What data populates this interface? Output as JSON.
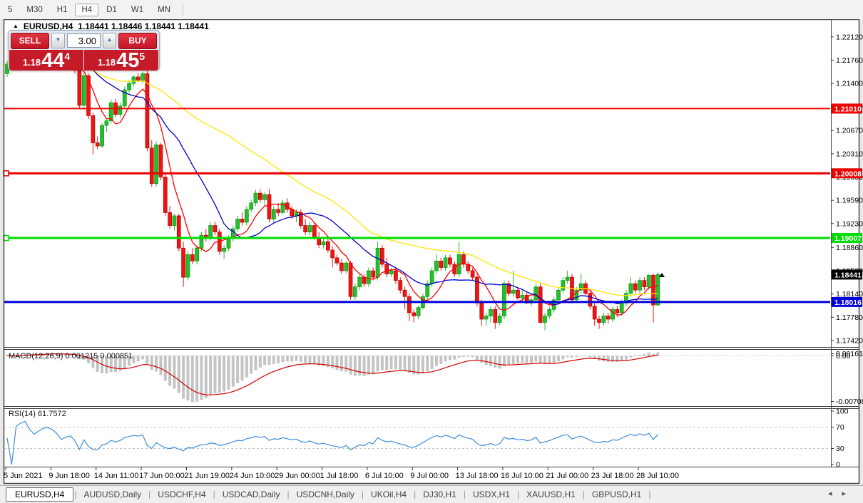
{
  "toolbar": {
    "timeframes": [
      "5",
      "M30",
      "H1",
      "H4",
      "D1",
      "W1",
      "MN"
    ],
    "active": "H4"
  },
  "header": {
    "collapse_icon": "▲",
    "symbol": "EURUSD,H4",
    "quotes": "1.18441 1.18446 1.18441 1.18441"
  },
  "trade_panel": {
    "sell_label": "SELL",
    "buy_label": "BUY",
    "volume": "3.00",
    "sell_price": {
      "prefix": "1.18",
      "big": "44",
      "sup": "4"
    },
    "buy_price": {
      "prefix": "1.18",
      "big": "45",
      "sup": "5"
    }
  },
  "chart_data": {
    "type": "candlestick",
    "symbol": "EURUSD",
    "timeframe": "H4",
    "ylim": [
      1.1732,
      1.2236
    ],
    "price_ticks": [
      "1.22120",
      "1.21760",
      "1.21400",
      "1.21040",
      "1.20670",
      "1.20310",
      "1.19950",
      "1.19590",
      "1.19230",
      "1.18860",
      "1.18500",
      "1.18140",
      "1.17780",
      "1.17420"
    ],
    "x_ticks": {
      "every": 10,
      "labels": [
        "5 Jun 2021",
        "9 Jun 18:00",
        "14 Jun 11:00",
        "17 Jun 00:00",
        "21 Jun 19:00",
        "24 Jun 10:00",
        "29 Jun 00:00",
        "1 Jul 18:00",
        "6 Jul 10:00",
        "9 Jul 00:00",
        "13 Jul 18:00",
        "16 Jul 10:00",
        "21 Jul 00:00",
        "23 Jul 18:00",
        "28 Jul 10:00"
      ]
    },
    "candles": [
      [
        1.2155,
        1.2175,
        1.215,
        1.217
      ],
      [
        1.217,
        1.2178,
        1.2162,
        1.2165
      ],
      [
        1.2165,
        1.218,
        1.216,
        1.2178
      ],
      [
        1.2178,
        1.2185,
        1.217,
        1.2182
      ],
      [
        1.2182,
        1.219,
        1.2176,
        1.2186
      ],
      [
        1.2186,
        1.2192,
        1.2178,
        1.218
      ],
      [
        1.218,
        1.2187,
        1.2172,
        1.2175
      ],
      [
        1.2175,
        1.2183,
        1.2169,
        1.2181
      ],
      [
        1.2181,
        1.219,
        1.2175,
        1.2188
      ],
      [
        1.2188,
        1.2195,
        1.2182,
        1.219
      ],
      [
        1.219,
        1.2196,
        1.2183,
        1.2187
      ],
      [
        1.2187,
        1.2192,
        1.2178,
        1.218
      ],
      [
        1.218,
        1.2185,
        1.216,
        1.2165
      ],
      [
        1.2165,
        1.2175,
        1.216,
        1.2172
      ],
      [
        1.2172,
        1.218,
        1.2165,
        1.2176
      ],
      [
        1.2176,
        1.2182,
        1.2155,
        1.216
      ],
      [
        1.216,
        1.2165,
        1.2102,
        1.2106
      ],
      [
        1.2106,
        1.2156,
        1.2103,
        1.2152
      ],
      [
        1.2152,
        1.2156,
        1.2085,
        1.209
      ],
      [
        1.209,
        1.2095,
        1.203,
        1.2048
      ],
      [
        1.2048,
        1.2058,
        1.2038,
        1.2043
      ],
      [
        1.2043,
        1.2078,
        1.204,
        1.2075
      ],
      [
        1.2075,
        1.2085,
        1.2065,
        1.2082
      ],
      [
        1.2082,
        1.2115,
        1.2078,
        1.211
      ],
      [
        1.211,
        1.2116,
        1.2088,
        1.2092
      ],
      [
        1.2092,
        1.211,
        1.2087,
        1.2105
      ],
      [
        1.2105,
        1.2135,
        1.21,
        1.213
      ],
      [
        1.213,
        1.2145,
        1.2125,
        1.214
      ],
      [
        1.214,
        1.2153,
        1.2135,
        1.215
      ],
      [
        1.215,
        1.2156,
        1.2142,
        1.2145
      ],
      [
        1.2145,
        1.2158,
        1.214,
        1.2155
      ],
      [
        1.2155,
        1.216,
        1.2035,
        1.204
      ],
      [
        1.204,
        1.2052,
        1.198,
        1.1985
      ],
      [
        1.1985,
        1.205,
        1.198,
        1.2045
      ],
      [
        1.2045,
        1.2048,
        1.199,
        1.1995
      ],
      [
        1.1995,
        1.2,
        1.1935,
        1.194
      ],
      [
        1.194,
        1.195,
        1.1915,
        1.192
      ],
      [
        1.192,
        1.1938,
        1.1912,
        1.1935
      ],
      [
        1.1935,
        1.1938,
        1.188,
        1.1885
      ],
      [
        1.1885,
        1.1895,
        1.1825,
        1.184
      ],
      [
        1.184,
        1.188,
        1.1835,
        1.1875
      ],
      [
        1.1875,
        1.1885,
        1.186,
        1.1865
      ],
      [
        1.1865,
        1.189,
        1.186,
        1.1885
      ],
      [
        1.1885,
        1.191,
        1.188,
        1.1905
      ],
      [
        1.1905,
        1.1915,
        1.1895,
        1.19
      ],
      [
        1.19,
        1.1925,
        1.1897,
        1.192
      ],
      [
        1.192,
        1.1926,
        1.1905,
        1.191
      ],
      [
        1.191,
        1.1915,
        1.1875,
        1.188
      ],
      [
        1.188,
        1.189,
        1.1868,
        1.1885
      ],
      [
        1.1885,
        1.1905,
        1.188,
        1.19
      ],
      [
        1.19,
        1.192,
        1.1895,
        1.1915
      ],
      [
        1.1915,
        1.1935,
        1.191,
        1.193
      ],
      [
        1.193,
        1.194,
        1.192,
        1.1925
      ],
      [
        1.1925,
        1.195,
        1.192,
        1.1945
      ],
      [
        1.1945,
        1.196,
        1.194,
        1.1955
      ],
      [
        1.1955,
        1.1975,
        1.195,
        1.197
      ],
      [
        1.197,
        1.1976,
        1.1955,
        1.196
      ],
      [
        1.196,
        1.1972,
        1.195,
        1.1968
      ],
      [
        1.1968,
        1.1977,
        1.1925,
        1.193
      ],
      [
        1.193,
        1.195,
        1.1925,
        1.1945
      ],
      [
        1.1945,
        1.1955,
        1.1935,
        1.194
      ],
      [
        1.194,
        1.196,
        1.1938,
        1.1955
      ],
      [
        1.1955,
        1.1962,
        1.194,
        1.1945
      ],
      [
        1.1945,
        1.195,
        1.193,
        1.1935
      ],
      [
        1.1935,
        1.1945,
        1.1925,
        1.194
      ],
      [
        1.194,
        1.1945,
        1.1915,
        1.192
      ],
      [
        1.192,
        1.193,
        1.1905,
        1.191
      ],
      [
        1.191,
        1.1925,
        1.1905,
        1.192
      ],
      [
        1.192,
        1.1925,
        1.1898,
        1.1902
      ],
      [
        1.1902,
        1.191,
        1.1885,
        1.189
      ],
      [
        1.189,
        1.19,
        1.1885,
        1.1895
      ],
      [
        1.1895,
        1.19,
        1.1878,
        1.1882
      ],
      [
        1.1882,
        1.1888,
        1.1855,
        1.187
      ],
      [
        1.187,
        1.1875,
        1.1858,
        1.1862
      ],
      [
        1.1862,
        1.1868,
        1.1845,
        1.185
      ],
      [
        1.185,
        1.1865,
        1.1845,
        1.1862
      ],
      [
        1.1862,
        1.1865,
        1.1805,
        1.181
      ],
      [
        1.181,
        1.183,
        1.1805,
        1.1825
      ],
      [
        1.1825,
        1.1845,
        1.182,
        1.184
      ],
      [
        1.184,
        1.1845,
        1.1825,
        1.183
      ],
      [
        1.183,
        1.1855,
        1.1825,
        1.185
      ],
      [
        1.185,
        1.1855,
        1.1835,
        1.184
      ],
      [
        1.184,
        1.1895,
        1.1835,
        1.1885
      ],
      [
        1.1885,
        1.189,
        1.1855,
        1.186
      ],
      [
        1.186,
        1.187,
        1.184,
        1.1845
      ],
      [
        1.1845,
        1.1855,
        1.184,
        1.185
      ],
      [
        1.185,
        1.1855,
        1.183,
        1.1835
      ],
      [
        1.1835,
        1.184,
        1.1815,
        1.182
      ],
      [
        1.182,
        1.1825,
        1.179,
        1.181
      ],
      [
        1.181,
        1.1815,
        1.1772,
        1.1785
      ],
      [
        1.1785,
        1.179,
        1.177,
        1.178
      ],
      [
        1.178,
        1.1796,
        1.1775,
        1.1793
      ],
      [
        1.1793,
        1.1815,
        1.179,
        1.181
      ],
      [
        1.181,
        1.1835,
        1.1805,
        1.183
      ],
      [
        1.183,
        1.1855,
        1.1825,
        1.185
      ],
      [
        1.185,
        1.1875,
        1.1845,
        1.1865
      ],
      [
        1.1865,
        1.187,
        1.185,
        1.1855
      ],
      [
        1.1855,
        1.1875,
        1.185,
        1.187
      ],
      [
        1.187,
        1.1875,
        1.1855,
        1.186
      ],
      [
        1.186,
        1.1865,
        1.184,
        1.1845
      ],
      [
        1.1845,
        1.1895,
        1.184,
        1.1875
      ],
      [
        1.1875,
        1.188,
        1.1855,
        1.186
      ],
      [
        1.186,
        1.1865,
        1.1845,
        1.185
      ],
      [
        1.185,
        1.1855,
        1.1835,
        1.184
      ],
      [
        1.184,
        1.1845,
        1.1795,
        1.18
      ],
      [
        1.18,
        1.1805,
        1.1765,
        1.1775
      ],
      [
        1.1775,
        1.1785,
        1.1765,
        1.178
      ],
      [
        1.178,
        1.1795,
        1.177,
        1.179
      ],
      [
        1.179,
        1.1795,
        1.176,
        1.177
      ],
      [
        1.177,
        1.1785,
        1.1765,
        1.178
      ],
      [
        1.178,
        1.1835,
        1.1775,
        1.183
      ],
      [
        1.183,
        1.1835,
        1.181,
        1.1815
      ],
      [
        1.1815,
        1.185,
        1.181,
        1.182
      ],
      [
        1.182,
        1.1825,
        1.1805,
        1.1808
      ],
      [
        1.1808,
        1.182,
        1.1802,
        1.1812
      ],
      [
        1.1812,
        1.1817,
        1.1798,
        1.18
      ],
      [
        1.18,
        1.181,
        1.1795,
        1.1805
      ],
      [
        1.1805,
        1.183,
        1.18,
        1.1825
      ],
      [
        1.1825,
        1.183,
        1.1768,
        1.177
      ],
      [
        1.177,
        1.1785,
        1.1758,
        1.178
      ],
      [
        1.178,
        1.1795,
        1.1775,
        1.179
      ],
      [
        1.179,
        1.181,
        1.1785,
        1.1805
      ],
      [
        1.1805,
        1.1825,
        1.18,
        1.182
      ],
      [
        1.182,
        1.184,
        1.1815,
        1.1835
      ],
      [
        1.1835,
        1.185,
        1.183,
        1.184
      ],
      [
        1.184,
        1.1845,
        1.18,
        1.1805
      ],
      [
        1.1805,
        1.1825,
        1.18,
        1.182
      ],
      [
        1.182,
        1.1845,
        1.1815,
        1.183
      ],
      [
        1.183,
        1.1835,
        1.181,
        1.1815
      ],
      [
        1.1815,
        1.182,
        1.179,
        1.1795
      ],
      [
        1.1795,
        1.18,
        1.1765,
        1.1775
      ],
      [
        1.1775,
        1.178,
        1.176,
        1.177
      ],
      [
        1.177,
        1.1785,
        1.1765,
        1.178
      ],
      [
        1.178,
        1.1785,
        1.1768,
        1.1775
      ],
      [
        1.1775,
        1.1795,
        1.177,
        1.179
      ],
      [
        1.179,
        1.1795,
        1.1778,
        1.1785
      ],
      [
        1.1785,
        1.1805,
        1.178,
        1.18
      ],
      [
        1.18,
        1.182,
        1.1795,
        1.1815
      ],
      [
        1.1815,
        1.184,
        1.181,
        1.183
      ],
      [
        1.183,
        1.1835,
        1.1815,
        1.182
      ],
      [
        1.182,
        1.184,
        1.1815,
        1.1835
      ],
      [
        1.1835,
        1.184,
        1.182,
        1.1825
      ],
      [
        1.1825,
        1.1845,
        1.182,
        1.1843
      ],
      [
        1.1843,
        1.1846,
        1.177,
        1.1797
      ],
      [
        1.1797,
        1.1848,
        1.1795,
        1.18441
      ]
    ],
    "moving_averages": [
      {
        "period": 7,
        "color": "#ff0000"
      },
      {
        "period": 18,
        "color": "#0000cc"
      },
      {
        "period": 50,
        "color": "#ffe600"
      }
    ],
    "hlines": [
      {
        "price": 1.2101,
        "label": "1.21010",
        "color": "#f00000",
        "thickness": 2,
        "marker": false
      },
      {
        "price": 1.20008,
        "label": "1.20008",
        "color": "#e80000",
        "thickness": 3,
        "marker": true
      },
      {
        "price": 1.19007,
        "label": "1.19007",
        "color": "#00dc00",
        "thickness": 3,
        "marker": true
      },
      {
        "price": 1.18016,
        "label": "1.18016",
        "color": "#0000dc",
        "thickness": 3,
        "marker": false
      }
    ],
    "current_price": {
      "value": 1.18441,
      "label": "1.18441",
      "bg": "#000000"
    },
    "indicators": {
      "macd": {
        "label": "MACD(12,26,9) 0.001215 0.000851",
        "fast": 12,
        "slow": 26,
        "signal": 9,
        "axis": [
          "0.00161",
          "0.00",
          "-0.007088"
        ],
        "hist_color": "#c4c4c4",
        "line_color": "#d40000"
      },
      "rsi": {
        "label": "RSI(14) 61.7572",
        "period": 14,
        "levels": [
          70,
          30
        ],
        "axis": [
          "100",
          "70",
          "30",
          "0"
        ],
        "line_color": "#3e8ede"
      }
    },
    "candle_colors": {
      "up": "#25c12c",
      "up_border": "#0e8f12",
      "down": "#f01515",
      "down_border": "#b00000"
    }
  },
  "tabs": {
    "items": [
      "EURUSD,H4",
      "AUDUSD,Daily",
      "USDCHF,H4",
      "USDCAD,Daily",
      "USDCNH,Daily",
      "UKOil,H4",
      "DJ30,H1",
      "USDX,H1",
      "XAUUSD,H1",
      "GBPUSD,H1"
    ],
    "active": "EURUSD,H4",
    "scroll_left_icon": "◂",
    "scroll_right_icon": "▸"
  }
}
